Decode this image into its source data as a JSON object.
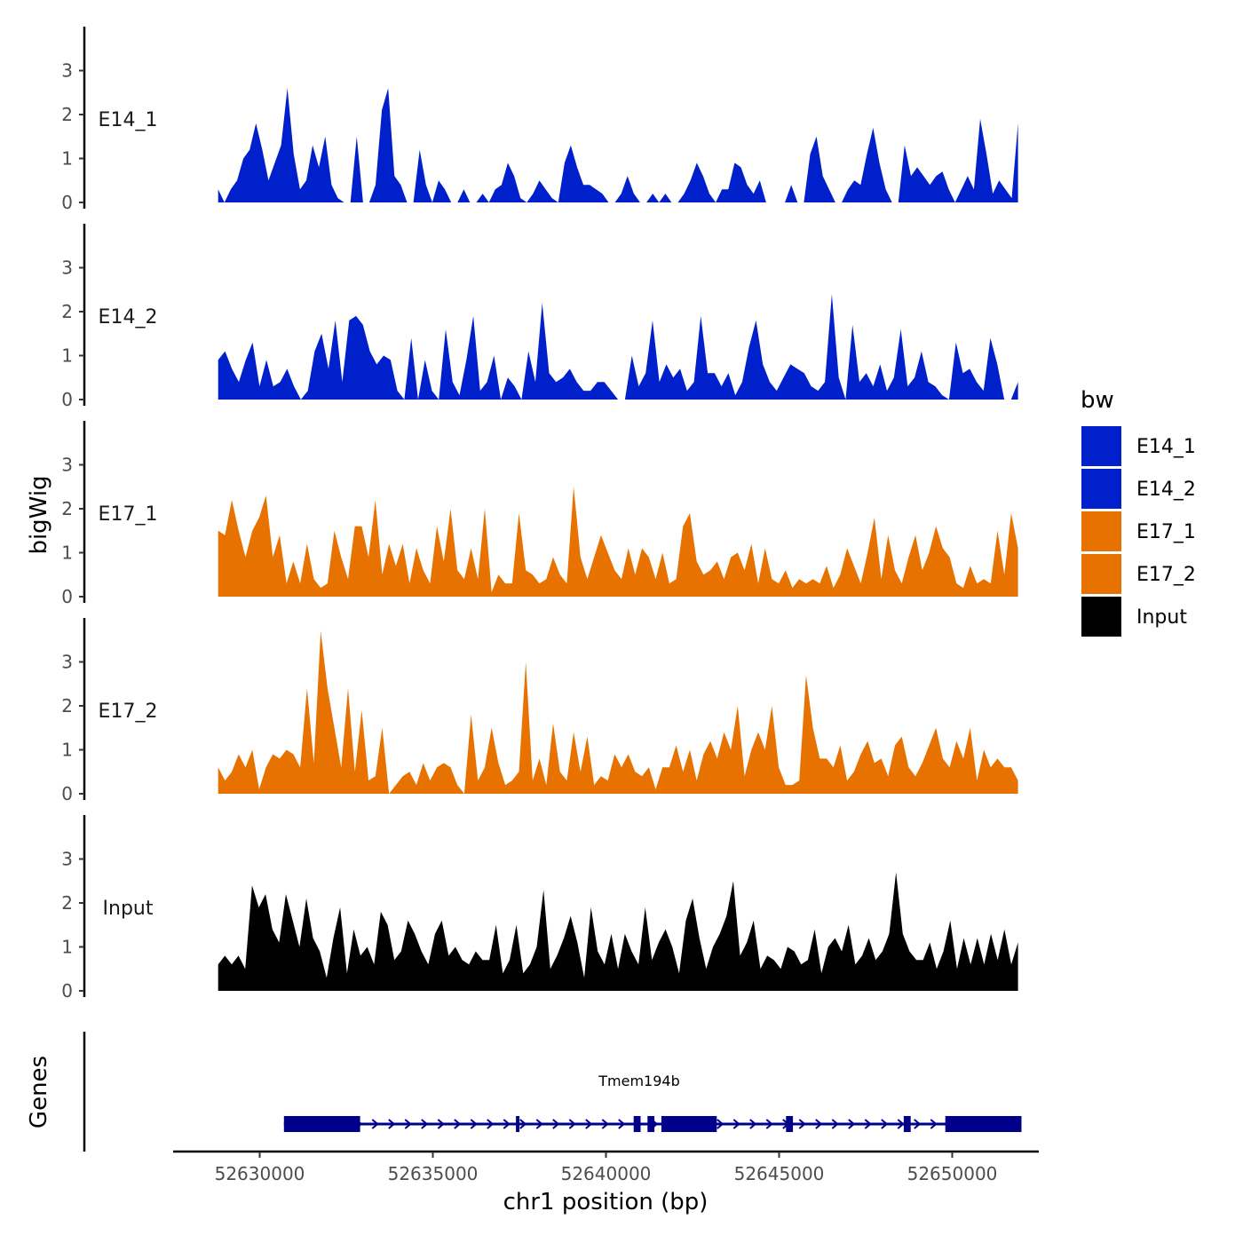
{
  "chart_data": {
    "type": "area",
    "title": "",
    "ylabel": "bigWig",
    "xlabel": "chr1 position (bp)",
    "xlim": [
      52627500,
      52652500
    ],
    "ylim": [
      0,
      4
    ],
    "yticks": [
      0,
      1,
      2,
      3
    ],
    "xticks": [
      52630000,
      52635000,
      52640000,
      52645000,
      52650000
    ],
    "x_start": 52628800,
    "x_end": 52651900,
    "legend": {
      "title": "bw",
      "position": "right",
      "entries": [
        {
          "label": "E14_1",
          "color": "#0020CC"
        },
        {
          "label": "E14_2",
          "color": "#0020CC"
        },
        {
          "label": "E17_1",
          "color": "#E87200"
        },
        {
          "label": "E17_2",
          "color": "#E87200"
        },
        {
          "label": "Input",
          "color": "#000000"
        }
      ]
    },
    "series": [
      {
        "name": "E14_1",
        "color": "#0020CC",
        "values": [
          0.3,
          0,
          0.3,
          0.5,
          1,
          1.2,
          1.8,
          1.2,
          0.5,
          0.9,
          1.3,
          2.6,
          1.1,
          0.3,
          0.5,
          1.3,
          0.8,
          1.5,
          0.4,
          0.1,
          0,
          0,
          1.5,
          0,
          0,
          0.4,
          2.1,
          2.6,
          0.6,
          0.4,
          0,
          0,
          1.2,
          0.4,
          0,
          0.5,
          0.3,
          0,
          0,
          0.3,
          0,
          0,
          0.2,
          0,
          0.3,
          0.4,
          0.9,
          0.6,
          0.1,
          0,
          0.2,
          0.5,
          0.3,
          0.1,
          0,
          0.9,
          1.3,
          0.8,
          0.4,
          0.4,
          0.3,
          0.2,
          0,
          0,
          0.2,
          0.6,
          0.2,
          0,
          0,
          0.2,
          0,
          0.2,
          0,
          0,
          0.2,
          0.5,
          0.9,
          0.6,
          0.2,
          0,
          0.3,
          0.3,
          0.9,
          0.8,
          0.4,
          0.2,
          0.5,
          0,
          0,
          0,
          0,
          0.4,
          0,
          0,
          1.1,
          1.5,
          0.6,
          0.3,
          0,
          0,
          0.3,
          0.5,
          0.4,
          1.1,
          1.7,
          0.9,
          0.3,
          0,
          0,
          1.3,
          0.6,
          0.8,
          0.6,
          0.4,
          0.6,
          0.7,
          0.3,
          0,
          0.3,
          0.6,
          0.3,
          1.9,
          1.1,
          0.2,
          0.5,
          0.3,
          0.1,
          1.8
        ]
      },
      {
        "name": "E14_2",
        "color": "#0020CC",
        "values": [
          0.9,
          1.1,
          0.7,
          0.4,
          0.9,
          1.3,
          0.3,
          0.9,
          0.3,
          0.4,
          0.7,
          0.3,
          0,
          0.2,
          1.1,
          1.5,
          0.7,
          1.8,
          0.4,
          1.8,
          1.9,
          1.7,
          1.1,
          0.8,
          1.0,
          0.9,
          0.2,
          0,
          1.4,
          0,
          0.9,
          0.2,
          0,
          1.6,
          0.4,
          0.1,
          0.9,
          1.9,
          0.2,
          0.4,
          1.0,
          0,
          0.5,
          0.3,
          0,
          1.1,
          0.4,
          2.2,
          0.6,
          0.4,
          0.5,
          0.7,
          0.4,
          0.2,
          0.2,
          0.4,
          0.4,
          0.2,
          0,
          0,
          1.0,
          0.3,
          0.6,
          1.8,
          0.4,
          0.8,
          0.5,
          0.7,
          0.2,
          0.4,
          1.9,
          0.6,
          0.6,
          0.3,
          0.6,
          0.1,
          0.4,
          1.2,
          1.8,
          0.8,
          0.4,
          0.2,
          0.5,
          0.8,
          0.7,
          0.6,
          0.3,
          0.2,
          0.4,
          2.4,
          0.5,
          0,
          1.7,
          0.4,
          0.6,
          0.3,
          0.8,
          0.2,
          0.5,
          1.6,
          0.3,
          0.5,
          1.1,
          0.4,
          0.3,
          0.1,
          0,
          1.3,
          0.6,
          0.7,
          0.4,
          0.2,
          1.4,
          0.8,
          0,
          0,
          0.4
        ]
      },
      {
        "name": "E17_1",
        "color": "#E87200",
        "values": [
          1.5,
          1.4,
          2.2,
          1.5,
          0.9,
          1.5,
          1.8,
          2.3,
          0.9,
          1.4,
          0.3,
          0.8,
          0.3,
          1.2,
          0.4,
          0.2,
          0.3,
          1.5,
          0.9,
          0.4,
          1.6,
          1.6,
          0.9,
          2.2,
          0.5,
          1.2,
          0.7,
          1.2,
          0.3,
          1.1,
          0.6,
          0.3,
          1.6,
          0.8,
          2.0,
          0.6,
          0.4,
          1.1,
          0.4,
          2.0,
          0.1,
          0.5,
          0.3,
          0.3,
          1.9,
          0.6,
          0.5,
          0.3,
          0.4,
          0.9,
          0.5,
          0.3,
          2.5,
          0.9,
          0.4,
          0.9,
          1.4,
          1.0,
          0.6,
          0.4,
          1.1,
          0.5,
          1.1,
          0.9,
          0.4,
          1.0,
          0.3,
          0.4,
          1.6,
          1.9,
          0.8,
          0.5,
          0.6,
          0.8,
          0.4,
          0.9,
          1.0,
          0.6,
          1.2,
          0.3,
          1.1,
          0.4,
          0.3,
          0.6,
          0.2,
          0.4,
          0.3,
          0.4,
          0.3,
          0.7,
          0.2,
          0.5,
          1.1,
          0.7,
          0.3,
          1.0,
          1.8,
          0.4,
          1.4,
          0.6,
          0.3,
          0.9,
          1.4,
          0.6,
          1.0,
          1.6,
          1.1,
          0.9,
          0.3,
          0.2,
          0.7,
          0.3,
          0.4,
          0.3,
          1.5,
          0.5,
          1.9,
          1.1
        ]
      },
      {
        "name": "E17_2",
        "color": "#E87200",
        "values": [
          0.6,
          0.3,
          0.5,
          0.9,
          0.6,
          1.0,
          0.1,
          0.6,
          0.9,
          0.8,
          1.0,
          0.9,
          0.6,
          2.4,
          0.7,
          3.7,
          2.4,
          1.5,
          0.6,
          2.4,
          0.5,
          1.9,
          0.3,
          0.4,
          1.5,
          0,
          0.2,
          0.4,
          0.5,
          0.2,
          0.7,
          0.3,
          0.6,
          0.7,
          0.6,
          0.2,
          0,
          1.8,
          0.3,
          0.6,
          1.5,
          0.7,
          0.2,
          0.3,
          0.5,
          3.0,
          0.3,
          0.8,
          0.2,
          1.6,
          0.5,
          0.3,
          1.4,
          0.5,
          1.3,
          0.2,
          0.4,
          0.3,
          0.9,
          0.6,
          0.9,
          0.5,
          0.4,
          0.6,
          0.1,
          0.6,
          0.6,
          1.1,
          0.5,
          1.0,
          0.3,
          0.9,
          1.2,
          0.8,
          1.4,
          1.0,
          2.0,
          0.4,
          1.0,
          1.4,
          1.0,
          2.0,
          0.6,
          0.2,
          0.2,
          0.3,
          2.7,
          1.5,
          0.8,
          0.8,
          0.6,
          1.1,
          0.3,
          0.5,
          0.9,
          1.2,
          0.7,
          0.8,
          0.4,
          1.1,
          1.3,
          0.6,
          0.4,
          0.7,
          1.1,
          1.5,
          0.8,
          0.6,
          1.2,
          0.8,
          1.5,
          0.3,
          1.0,
          0.6,
          0.8,
          0.6,
          0.6,
          0.3
        ]
      },
      {
        "name": "Input",
        "color": "#000000",
        "values": [
          0.6,
          0.8,
          0.6,
          0.8,
          0.5,
          2.4,
          1.9,
          2.2,
          1.4,
          1.1,
          2.2,
          1.6,
          1.0,
          2.1,
          1.2,
          0.9,
          0.3,
          1.2,
          1.9,
          0.4,
          1.4,
          0.8,
          1.0,
          0.6,
          1.8,
          1.5,
          0.7,
          0.9,
          1.6,
          1.3,
          0.9,
          0.6,
          1.3,
          1.6,
          0.8,
          1.0,
          0.7,
          0.6,
          0.9,
          0.7,
          0.7,
          1.5,
          0.4,
          0.7,
          1.5,
          0.4,
          0.6,
          1.0,
          2.3,
          0.5,
          0.8,
          1.2,
          1.7,
          1.1,
          0.3,
          1.9,
          0.9,
          0.6,
          1.3,
          0.5,
          1.3,
          0.9,
          0.6,
          1.9,
          0.7,
          1.1,
          1.4,
          1.0,
          0.4,
          1.6,
          2.1,
          1.2,
          0.5,
          1.0,
          1.3,
          1.7,
          2.5,
          0.8,
          1.1,
          1.6,
          0.5,
          0.8,
          0.7,
          0.5,
          1.0,
          0.9,
          0.6,
          0.7,
          1.4,
          0.4,
          1.0,
          1.2,
          0.9,
          1.5,
          0.6,
          0.8,
          1.2,
          0.7,
          0.9,
          1.3,
          2.7,
          1.3,
          0.9,
          0.7,
          0.7,
          1.1,
          0.5,
          0.9,
          1.6,
          0.5,
          1.2,
          0.6,
          1.2,
          0.6,
          1.3,
          0.7,
          1.4,
          0.6,
          1.1
        ]
      }
    ],
    "gene_track": {
      "label": "Genes",
      "gene_name": "Tmem194b",
      "strand": "+",
      "start": 52630700,
      "end": 52652000,
      "exons": [
        [
          52630700,
          52632900
        ],
        [
          52637400,
          52637500
        ],
        [
          52640800,
          52641000
        ],
        [
          52641200,
          52641400
        ],
        [
          52641600,
          52643200
        ],
        [
          52645200,
          52645400
        ],
        [
          52648600,
          52648800
        ],
        [
          52649800,
          52652000
        ]
      ]
    }
  }
}
